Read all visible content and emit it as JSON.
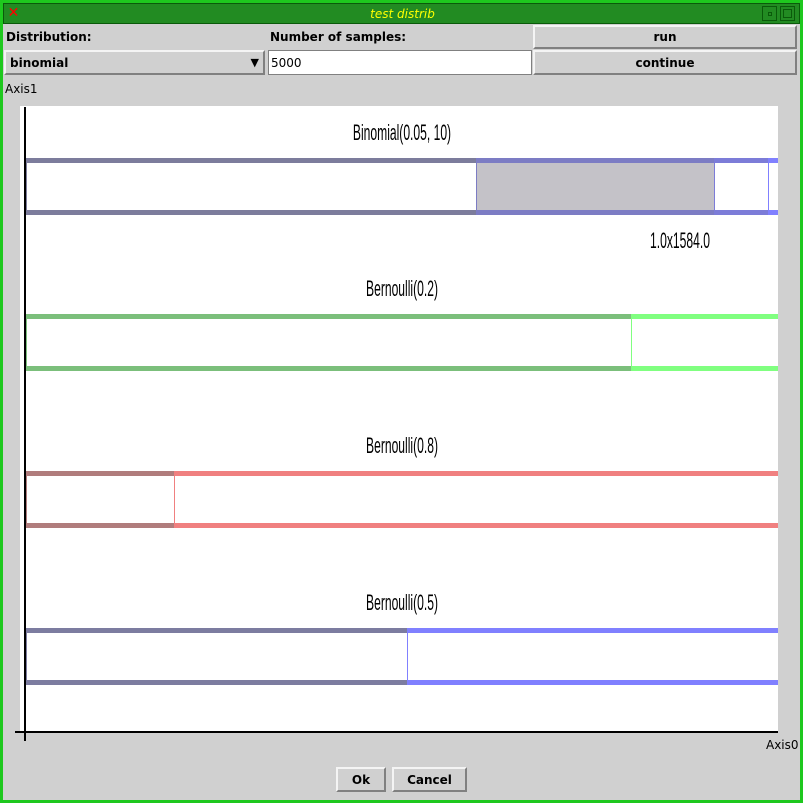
{
  "window": {
    "title": "test distrib",
    "close_icon": "close-x-icon",
    "iconify_icon": "minimize-icon",
    "maximize_icon": "maximize-icon",
    "accent": "#228b22"
  },
  "controls": {
    "distribution_label": "Distribution:",
    "distribution_value": "binomial",
    "samples_label": "Number of samples:",
    "samples_value": "5000",
    "run_label": "run",
    "continue_label": "continue"
  },
  "chart_data": {
    "type": "bar",
    "orientation": "horizontal-stacked",
    "ylabel": "Axis1",
    "xlabel": "Axis0",
    "annotation": "1.0x1584.0",
    "bars": [
      {
        "name": "Binomial(0.05, 10)",
        "segments": [
          0.598,
          0.317,
          0.072,
          0.013
        ],
        "colors": [
          "#7c7c9c",
          "#7c7cc4",
          "#7c7cd8",
          "#8080ff"
        ],
        "fills": [
          "#ffffff",
          "#c4c2c8",
          "#ffffff",
          "#ffffff"
        ]
      },
      {
        "name": "Bernoulli(0.2)",
        "segments": [
          0.805,
          0.195
        ],
        "colors": [
          "#7bbf7b",
          "#80ff80"
        ],
        "fills": [
          "#ffffff",
          "#ffffff"
        ]
      },
      {
        "name": "Bernoulli(0.8)",
        "segments": [
          0.197,
          0.803
        ],
        "colors": [
          "#b07c7c",
          "#f08080"
        ],
        "fills": [
          "#ffffff",
          "#ffffff"
        ]
      },
      {
        "name": "Bernoulli(0.5)",
        "segments": [
          0.507,
          0.493
        ],
        "colors": [
          "#7c7ca0",
          "#8080ff"
        ],
        "fills": [
          "#ffffff",
          "#ffffff"
        ]
      }
    ]
  },
  "footer": {
    "ok_label": "Ok",
    "cancel_label": "Cancel"
  }
}
